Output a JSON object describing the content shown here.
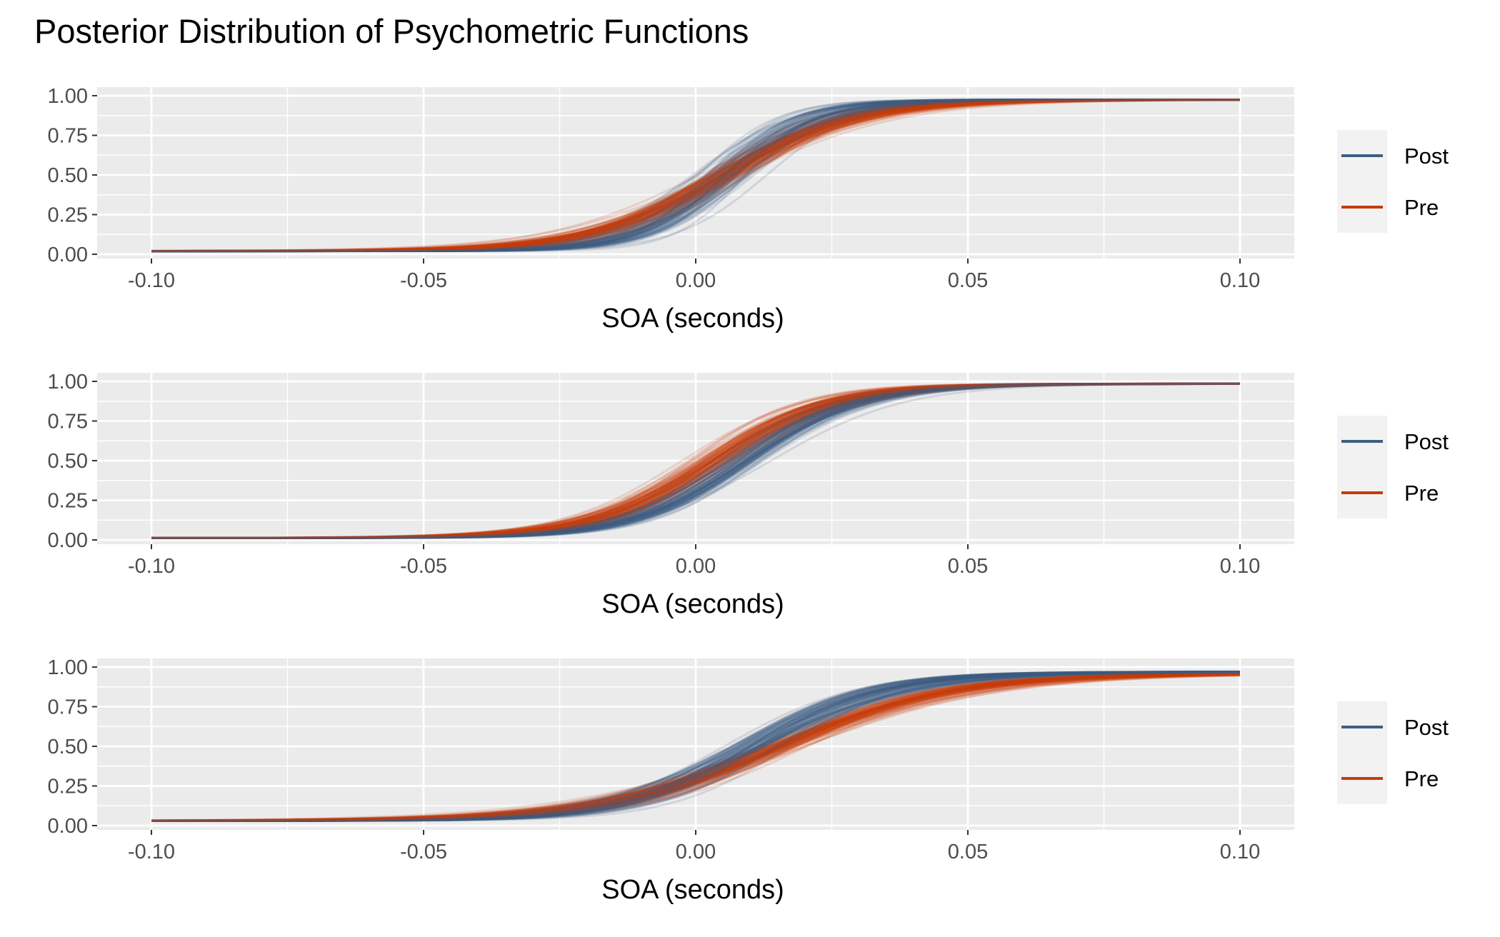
{
  "chart_title": "Posterior Distribution of Psychometric Functions",
  "colors": {
    "post": "#3E5F82",
    "pre": "#C43C0E",
    "panel_bg": "#EBEBEB",
    "grid": "#FFFFFF",
    "legend_bg": "#F2F2F2"
  },
  "chart_data": [
    {
      "type": "line",
      "title": "",
      "xlabel": "SOA (seconds)",
      "ylabel": "",
      "xlim": [
        -0.1,
        0.1
      ],
      "ylim": [
        0,
        1
      ],
      "x_ticks": [
        "-0.10",
        "-0.05",
        "0.00",
        "0.05",
        "0.10"
      ],
      "y_ticks": [
        "0.00",
        "0.25",
        "0.50",
        "0.75",
        "1.00"
      ],
      "legend": {
        "position": "right",
        "entries": [
          "Post",
          "Pre"
        ]
      },
      "series": [
        {
          "name": "Post",
          "color": "#3E5F82",
          "pss": 0.0055,
          "slope": 115,
          "pss_spread": 0.004,
          "slope_spread": 25,
          "lower": 0.02,
          "upper": 0.975
        },
        {
          "name": "Pre",
          "color": "#C43C0E",
          "pss": 0.005,
          "slope": 82,
          "pss_spread": 0.003,
          "slope_spread": 10,
          "lower": 0.02,
          "upper": 0.975
        }
      ]
    },
    {
      "type": "line",
      "title": "",
      "xlabel": "SOA (seconds)",
      "ylabel": "",
      "xlim": [
        -0.1,
        0.1
      ],
      "ylim": [
        0,
        1
      ],
      "x_ticks": [
        "-0.10",
        "-0.05",
        "0.00",
        "0.05",
        "0.10"
      ],
      "y_ticks": [
        "0.00",
        "0.25",
        "0.50",
        "0.75",
        "1.00"
      ],
      "legend": {
        "position": "right",
        "entries": [
          "Post",
          "Pre"
        ]
      },
      "series": [
        {
          "name": "Post",
          "color": "#3E5F82",
          "pss": 0.0085,
          "slope": 95,
          "pss_spread": 0.003,
          "slope_spread": 10,
          "lower": 0.012,
          "upper": 0.985
        },
        {
          "name": "Pre",
          "color": "#C43C0E",
          "pss": 0.003,
          "slope": 90,
          "pss_spread": 0.003,
          "slope_spread": 10,
          "lower": 0.012,
          "upper": 0.985
        }
      ]
    },
    {
      "type": "line",
      "title": "",
      "xlabel": "SOA (seconds)",
      "ylabel": "",
      "xlim": [
        -0.1,
        0.1
      ],
      "ylim": [
        0,
        1
      ],
      "x_ticks": [
        "-0.10",
        "-0.05",
        "0.00",
        "0.05",
        "0.10"
      ],
      "y_ticks": [
        "0.00",
        "0.25",
        "0.50",
        "0.75",
        "1.00"
      ],
      "legend": {
        "position": "right",
        "entries": [
          "Post",
          "Pre"
        ]
      },
      "series": [
        {
          "name": "Post",
          "color": "#3E5F82",
          "pss": 0.0105,
          "slope": 80,
          "pss_spread": 0.004,
          "slope_spread": 10,
          "lower": 0.03,
          "upper": 0.97
        },
        {
          "name": "Pre",
          "color": "#C43C0E",
          "pss": 0.0155,
          "slope": 62,
          "pss_spread": 0.003,
          "slope_spread": 7,
          "lower": 0.03,
          "upper": 0.96
        }
      ]
    }
  ]
}
